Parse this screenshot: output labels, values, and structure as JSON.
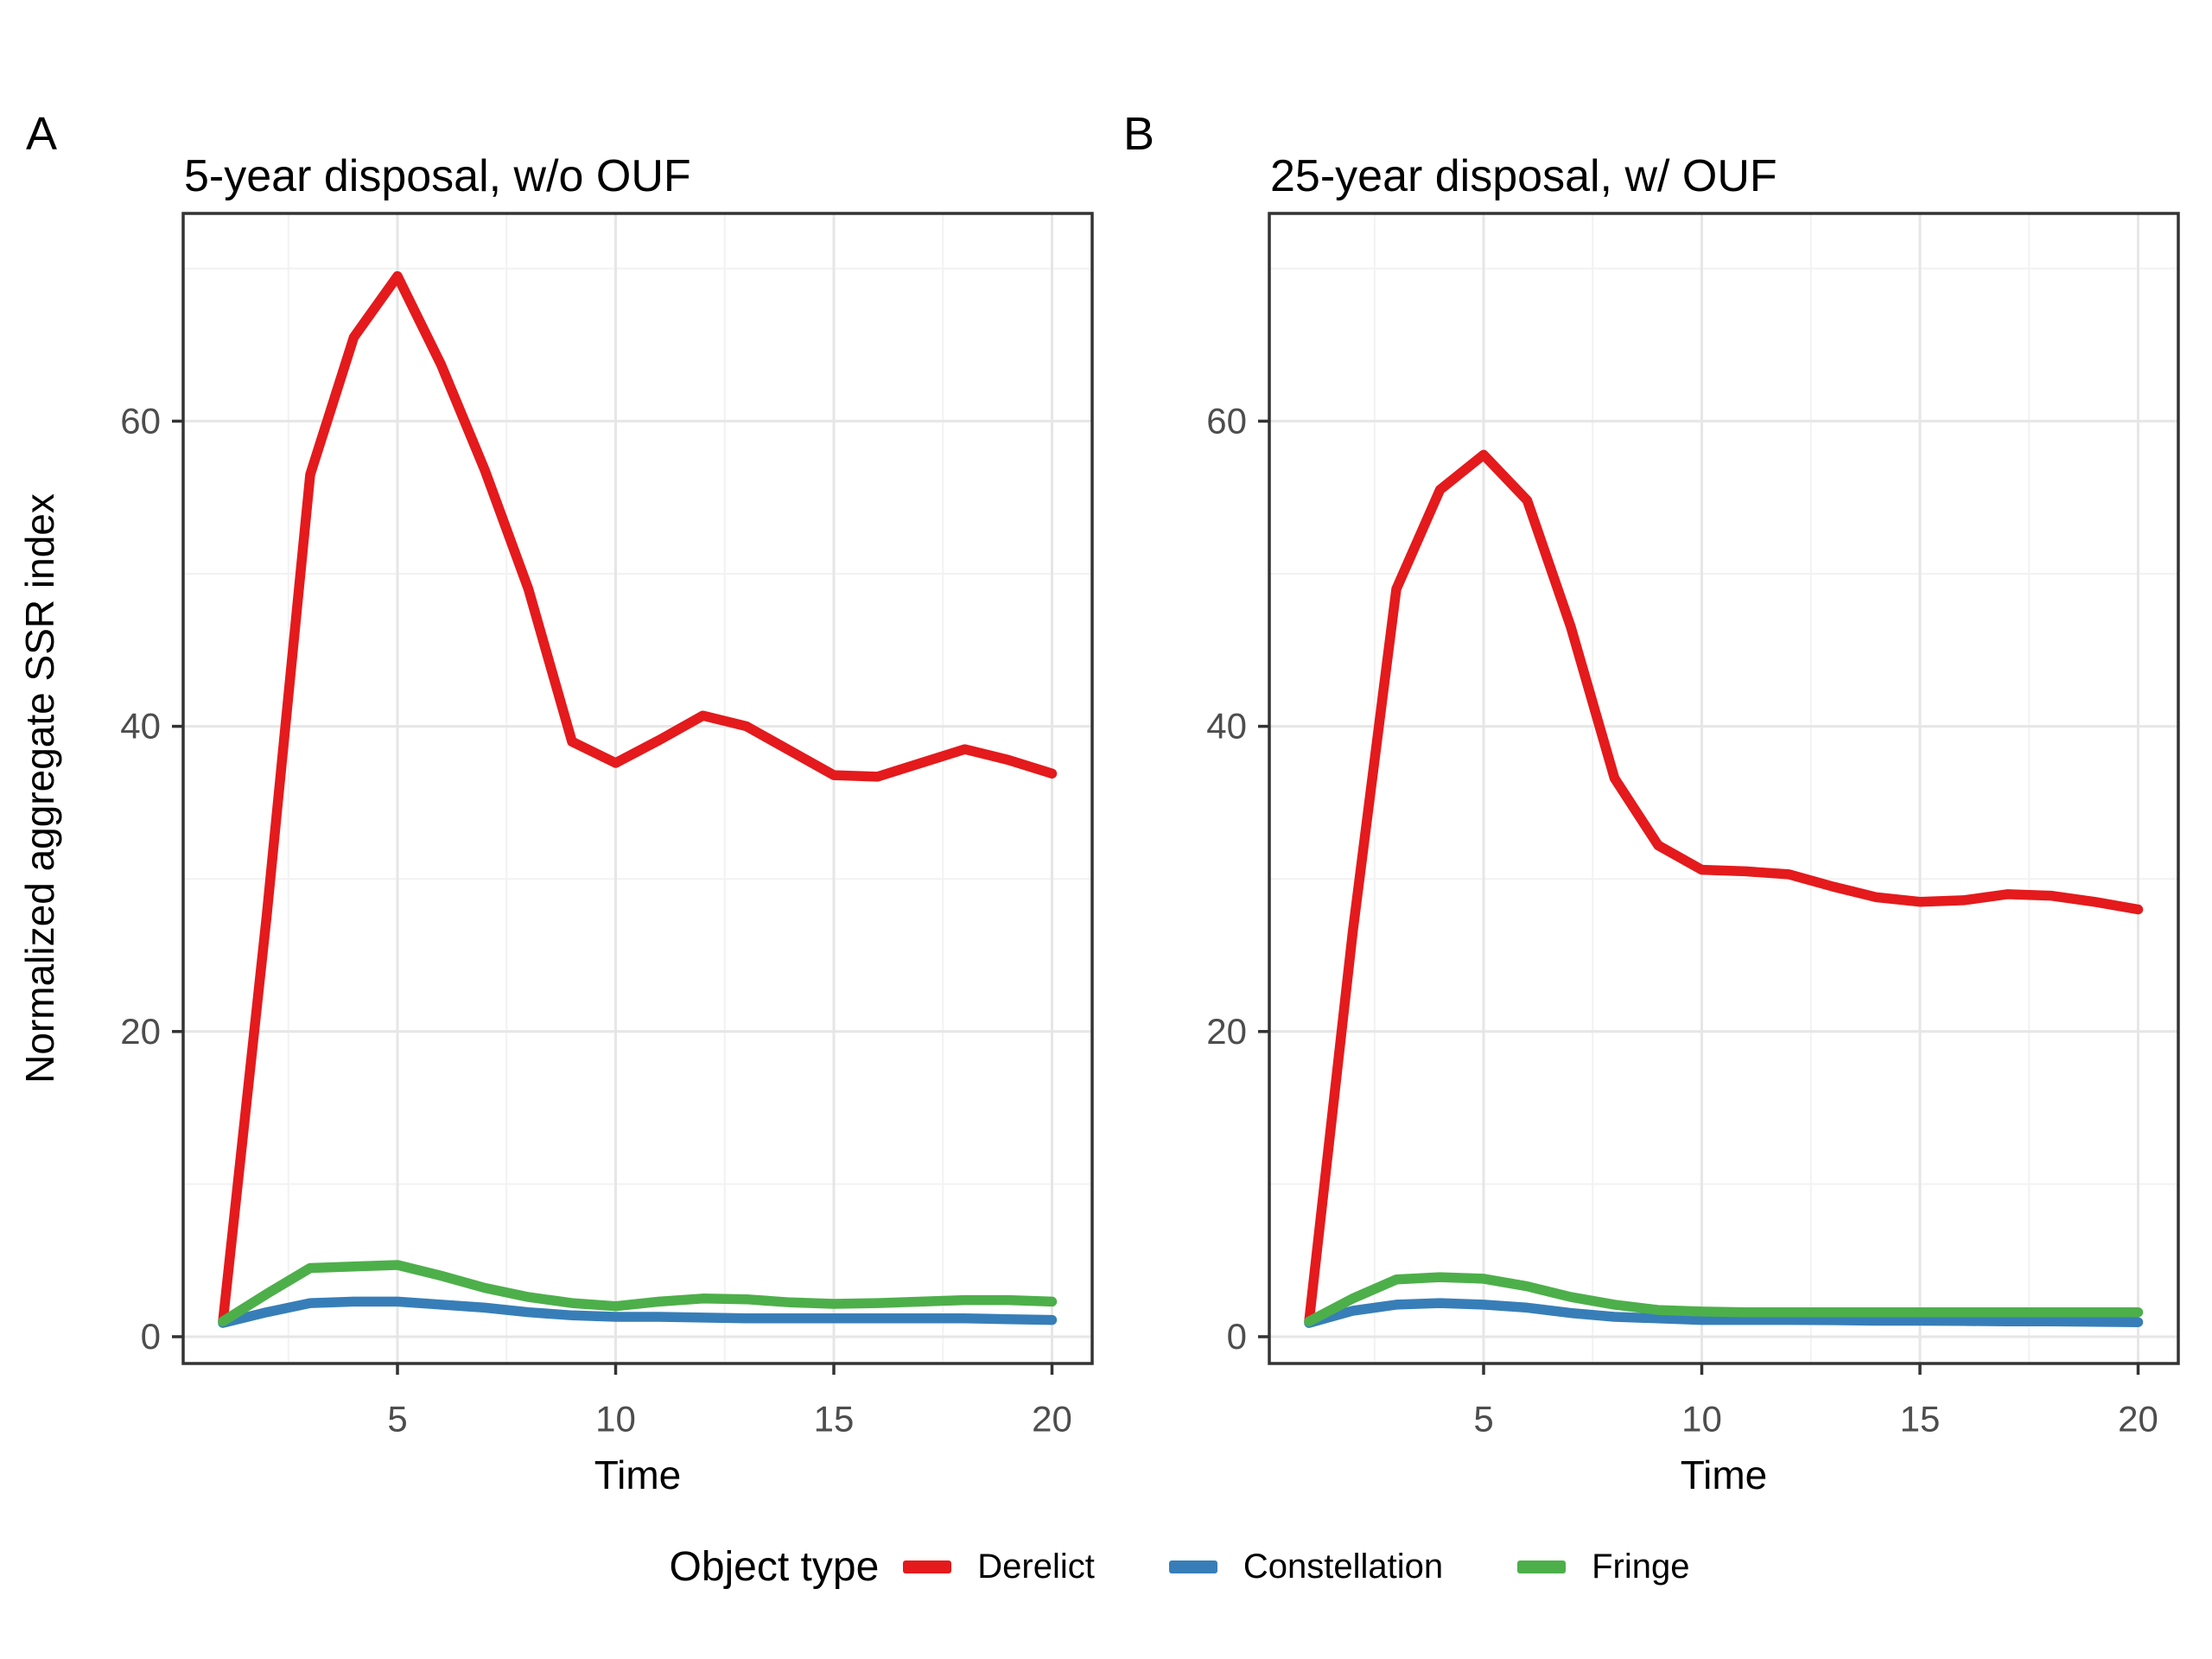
{
  "figure": {
    "panel_tags": [
      "A",
      "B"
    ],
    "background_color": "#ffffff",
    "border_color": "#333333",
    "grid_major_color": "#e6e6e6",
    "grid_minor_color": "#f2f2f2",
    "tick_text_color": "#4d4d4d"
  },
  "legend": {
    "title": "Object type",
    "entries": [
      {
        "label": "Derelict",
        "color": "#e41a1c"
      },
      {
        "label": "Constellation",
        "color": "#377eb8"
      },
      {
        "label": "Fringe",
        "color": "#4daf4a"
      }
    ],
    "position": "bottom"
  },
  "chart_data": [
    {
      "type": "line",
      "tag": "A",
      "title": "5-year disposal, w/o OUF",
      "xlabel": "Time",
      "ylabel": "Normalized aggregate SSR index",
      "x": [
        1,
        2,
        3,
        4,
        5,
        6,
        7,
        8,
        9,
        10,
        11,
        12,
        13,
        14,
        15,
        16,
        17,
        18,
        19,
        20
      ],
      "x_ticks": [
        5,
        10,
        15,
        20
      ],
      "x_minor": [
        2.5,
        7.5,
        12.5,
        17.5
      ],
      "y_ticks": [
        0,
        20,
        40,
        60
      ],
      "y_minor": [
        10,
        30,
        50,
        70
      ],
      "xlim": [
        0.1,
        20.9
      ],
      "ylim": [
        -2.4,
        72.9
      ],
      "grid": true,
      "series": [
        {
          "name": "Derelict",
          "color": "#e41a1c",
          "values": [
            1.0,
            27.5,
            56.5,
            65.5,
            69.5,
            63.7,
            56.8,
            49.0,
            39.0,
            37.6,
            39.1,
            40.7,
            40.0,
            38.4,
            36.8,
            36.7,
            37.6,
            38.5,
            37.8,
            36.9
          ]
        },
        {
          "name": "Constellation",
          "color": "#377eb8",
          "values": [
            0.9,
            1.6,
            2.2,
            2.3,
            2.3,
            2.1,
            1.9,
            1.6,
            1.4,
            1.3,
            1.3,
            1.25,
            1.2,
            1.2,
            1.2,
            1.2,
            1.2,
            1.2,
            1.15,
            1.1
          ]
        },
        {
          "name": "Fringe",
          "color": "#4daf4a",
          "values": [
            1.0,
            2.8,
            4.5,
            4.6,
            4.7,
            4.0,
            3.2,
            2.6,
            2.2,
            2.0,
            2.3,
            2.5,
            2.45,
            2.25,
            2.15,
            2.2,
            2.3,
            2.4,
            2.4,
            2.3
          ]
        }
      ]
    },
    {
      "type": "line",
      "tag": "B",
      "title": "25-year disposal, w/ OUF",
      "xlabel": "Time",
      "ylabel": "",
      "x": [
        1,
        2,
        3,
        4,
        5,
        6,
        7,
        8,
        9,
        10,
        11,
        12,
        13,
        14,
        15,
        16,
        17,
        18,
        19,
        20
      ],
      "x_ticks": [
        5,
        10,
        15,
        20
      ],
      "x_minor": [
        2.5,
        7.5,
        12.5,
        17.5
      ],
      "y_ticks": [
        0,
        20,
        40,
        60
      ],
      "y_minor": [
        10,
        30,
        50,
        70
      ],
      "xlim": [
        0.1,
        20.9
      ],
      "ylim": [
        -2.4,
        72.9
      ],
      "grid": true,
      "series": [
        {
          "name": "Derelict",
          "color": "#e41a1c",
          "values": [
            1.0,
            26.5,
            49.0,
            55.5,
            57.8,
            54.8,
            46.5,
            36.6,
            32.2,
            30.6,
            30.5,
            30.3,
            29.5,
            28.8,
            28.5,
            28.6,
            29.0,
            28.9,
            28.5,
            28.0
          ]
        },
        {
          "name": "Constellation",
          "color": "#377eb8",
          "values": [
            0.9,
            1.7,
            2.1,
            2.2,
            2.1,
            1.9,
            1.55,
            1.3,
            1.2,
            1.1,
            1.1,
            1.1,
            1.08,
            1.05,
            1.05,
            1.03,
            1.0,
            1.0,
            0.98,
            0.95
          ]
        },
        {
          "name": "Fringe",
          "color": "#4daf4a",
          "values": [
            1.0,
            2.5,
            3.75,
            3.9,
            3.8,
            3.3,
            2.6,
            2.1,
            1.75,
            1.65,
            1.6,
            1.6,
            1.6,
            1.6,
            1.6,
            1.6,
            1.6,
            1.6,
            1.6,
            1.6
          ]
        }
      ]
    }
  ]
}
